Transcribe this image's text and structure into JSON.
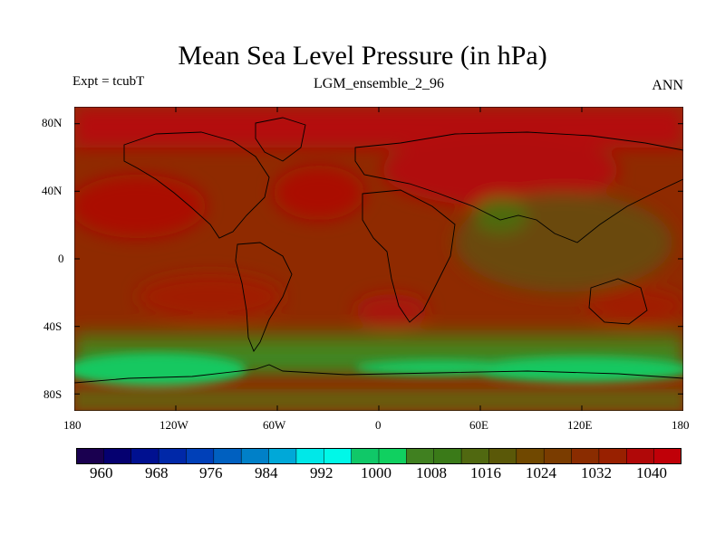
{
  "header": {
    "title": "Mean Sea Level Pressure (in hPa)",
    "left_label": "Expt = tcubT",
    "center_label": "LGM_ensemble_2_96",
    "right_label": "ANN"
  },
  "map": {
    "projection": "cylindrical equidistant",
    "lat_ticks": [
      "80N",
      "40N",
      "0",
      "40S",
      "80S"
    ],
    "lon_ticks": [
      "180",
      "120W",
      "60W",
      "0",
      "60E",
      "120E",
      "180"
    ],
    "field": {
      "background_level_hpa": 1028,
      "regions": [
        {
          "name": "arctic-high",
          "level_hpa": 1036
        },
        {
          "name": "north-pacific-high",
          "level_hpa": 1032
        },
        {
          "name": "north-atlantic-high",
          "level_hpa": 1032
        },
        {
          "name": "siberian-high",
          "level_hpa": 1036
        },
        {
          "name": "south-pacific-high",
          "level_hpa": 1032
        },
        {
          "name": "south-atlantic-high",
          "level_hpa": 1032
        },
        {
          "name": "indian-ocean-high",
          "level_hpa": 1032
        },
        {
          "name": "asian-monsoon-low",
          "level_hpa": 1016
        },
        {
          "name": "southern-westerlies-belt",
          "level_hpa": 1016
        },
        {
          "name": "southern-ocean-trough",
          "level_hpa": 1008
        },
        {
          "name": "antarctica",
          "level_hpa": 1024
        }
      ]
    }
  },
  "colorbar": {
    "labels": [
      "960",
      "968",
      "976",
      "984",
      "992",
      "1000",
      "1008",
      "1016",
      "1024",
      "1032",
      "1040"
    ],
    "colors": [
      "#1a0050",
      "#050070",
      "#001090",
      "#0028a8",
      "#0040b8",
      "#0060c0",
      "#0080c8",
      "#00a8d8",
      "#00e8e8",
      "#00f8e8",
      "#10c868",
      "#10d060",
      "#408020",
      "#3a7a18",
      "#506810",
      "#5a5808",
      "#704800",
      "#7a3c00",
      "#8a2c00",
      "#982000",
      "#b00808",
      "#c00008"
    ]
  }
}
